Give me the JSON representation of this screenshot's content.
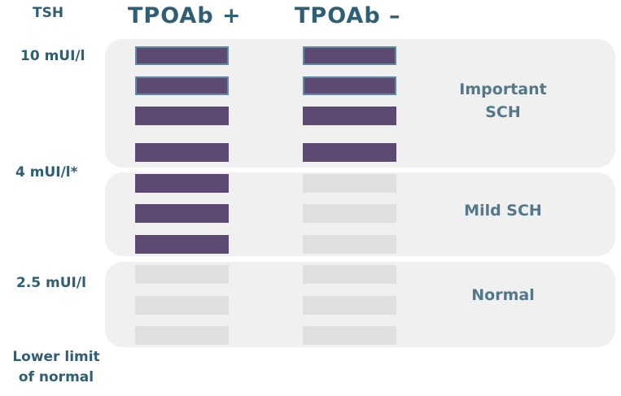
{
  "axis": {
    "title": "TSH",
    "levels": {
      "high": "10 mUI/l",
      "mid": "4 mUI/l*",
      "low": "2.5 mUI/l",
      "lower_limit_line1": "Lower limit",
      "lower_limit_line2": "of normal"
    }
  },
  "columns": {
    "positive": "TPOAb +",
    "negative": "TPOAb –"
  },
  "bands": {
    "important": {
      "line1": "Important",
      "line2": "SCH"
    },
    "mild": {
      "label": "Mild SCH"
    },
    "normal": {
      "label": "Normal"
    }
  },
  "colors": {
    "filled": "#5c4a73",
    "empty": "#dedfe0",
    "band": "#f0f0f1",
    "text": "#2f5f74"
  },
  "bars": {
    "positive": [
      "filled",
      "filled",
      "filled",
      "filled",
      "filled",
      "filled",
      "filled",
      "empty",
      "empty",
      "empty"
    ],
    "negative": [
      "filled",
      "filled",
      "filled",
      "filled",
      "empty",
      "empty",
      "empty",
      "empty",
      "empty",
      "empty"
    ]
  }
}
